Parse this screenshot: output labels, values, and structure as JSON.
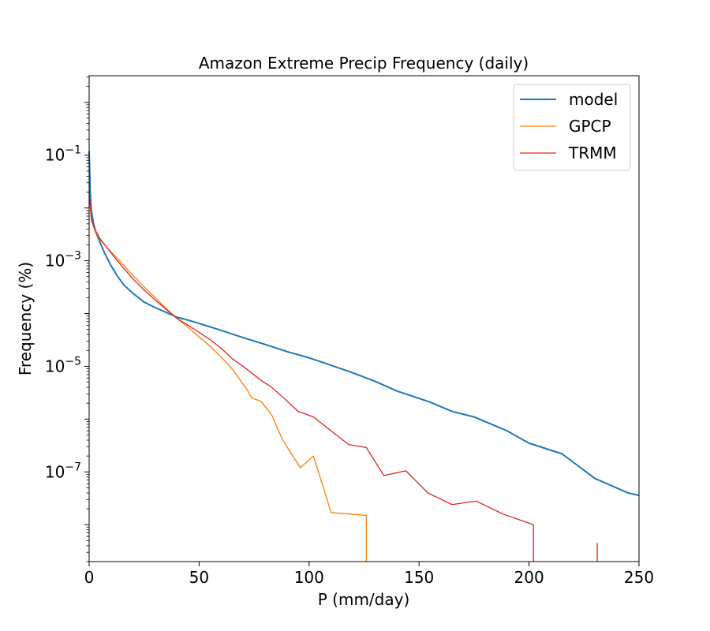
{
  "chart_data": {
    "type": "line",
    "title": "Amazon Extreme Precip Frequency (daily)",
    "xlabel": "P (mm/day)",
    "ylabel": "Frequency (%)",
    "xscale": "linear",
    "yscale": "log",
    "xlim": [
      0,
      250
    ],
    "ylim": [
      2e-09,
      3.2
    ],
    "xticks": [
      {
        "value": 0,
        "label": "0"
      },
      {
        "value": 50,
        "label": "50"
      },
      {
        "value": 100,
        "label": "100"
      },
      {
        "value": 150,
        "label": "150"
      },
      {
        "value": 200,
        "label": "200"
      },
      {
        "value": 250,
        "label": "250"
      }
    ],
    "yticks": [
      {
        "value": 0.1,
        "base": "10",
        "exp": "−1"
      },
      {
        "value": 0.001,
        "base": "10",
        "exp": "−3"
      },
      {
        "value": 1e-05,
        "base": "10",
        "exp": "−5"
      },
      {
        "value": 1e-07,
        "base": "10",
        "exp": "−7"
      }
    ],
    "legend_position": "top-right",
    "series": [
      {
        "name": "model",
        "color": "#1f77b4",
        "segments": [
          [
            [
              0,
              0.12
            ],
            [
              0.5,
              0.02
            ],
            [
              1,
              0.009
            ],
            [
              2,
              0.005
            ],
            [
              3,
              0.0035
            ],
            [
              5,
              0.0022
            ],
            [
              7,
              0.0014
            ],
            [
              10,
              0.0008
            ],
            [
              13,
              0.0005
            ],
            [
              16,
              0.00034
            ],
            [
              20,
              0.00024
            ],
            [
              25,
              0.000165
            ],
            [
              30,
              0.00013
            ],
            [
              35,
              0.000105
            ],
            [
              40,
              8.5e-05
            ],
            [
              45,
              7.5e-05
            ],
            [
              50,
              6.5e-05
            ],
            [
              60,
              4.8e-05
            ],
            [
              70,
              3.5e-05
            ],
            [
              80,
              2.6e-05
            ],
            [
              90,
              1.9e-05
            ],
            [
              100,
              1.45e-05
            ],
            [
              110,
              1.05e-05
            ],
            [
              120,
              7.5e-06
            ],
            [
              130,
              5.2e-06
            ],
            [
              140,
              3.4e-06
            ],
            [
              155,
              2.1e-06
            ],
            [
              165,
              1.4e-06
            ],
            [
              175,
              1.1e-06
            ],
            [
              190,
              6e-07
            ],
            [
              200,
              3.5e-07
            ],
            [
              215,
              2.2e-07
            ],
            [
              230,
              7.5e-08
            ],
            [
              245,
              4e-08
            ],
            [
              250,
              3.6e-08
            ]
          ]
        ]
      },
      {
        "name": "GPCP",
        "color": "#ff7f0e",
        "segments": [
          [
            [
              0,
              0.02
            ],
            [
              1,
              0.006
            ],
            [
              2.5,
              0.0038
            ],
            [
              5,
              0.0025
            ],
            [
              8,
              0.0018
            ],
            [
              12,
              0.0012
            ],
            [
              16,
              0.0008
            ],
            [
              20,
              0.00052
            ],
            [
              25,
              0.00032
            ],
            [
              30,
              0.0002
            ],
            [
              35,
              0.000125
            ],
            [
              40,
              8e-05
            ],
            [
              45,
              5.5e-05
            ],
            [
              50,
              3.6e-05
            ],
            [
              55,
              2.4e-05
            ],
            [
              60,
              1.5e-05
            ],
            [
              65,
              9e-06
            ],
            [
              68,
              6e-06
            ],
            [
              72,
              3.5e-06
            ],
            [
              74,
              2.5e-06
            ],
            [
              78,
              2.2e-06
            ],
            [
              83,
              1.2e-06
            ],
            [
              88,
              4e-07
            ],
            [
              96,
              1.2e-07
            ],
            [
              102,
              2e-07
            ],
            [
              110,
              1.7e-08
            ],
            [
              126,
              1.5e-08
            ],
            [
              126,
              2e-09
            ]
          ]
        ]
      },
      {
        "name": "TRMM",
        "color": "#d62728",
        "segments": [
          [
            [
              0,
              0.02
            ],
            [
              1,
              0.006
            ],
            [
              2.5,
              0.004
            ],
            [
              5,
              0.0026
            ],
            [
              8,
              0.0018
            ],
            [
              12,
              0.0011
            ],
            [
              16,
              0.0007
            ],
            [
              20,
              0.00045
            ],
            [
              25,
              0.00028
            ],
            [
              30,
              0.00018
            ],
            [
              35,
              0.00012
            ],
            [
              40,
              8e-05
            ],
            [
              45,
              6e-05
            ],
            [
              50,
              4.4e-05
            ],
            [
              55,
              3.2e-05
            ],
            [
              60,
              2.2e-05
            ],
            [
              65,
              1.4e-05
            ],
            [
              70,
              1e-05
            ],
            [
              78,
              5.5e-06
            ],
            [
              83,
              4e-06
            ],
            [
              90,
              2.2e-06
            ],
            [
              95,
              1.4e-06
            ],
            [
              102,
              1.1e-06
            ],
            [
              110,
              6e-07
            ],
            [
              118,
              3.3e-07
            ],
            [
              126,
              2.9e-07
            ],
            [
              134,
              8.5e-08
            ],
            [
              144,
              1.05e-07
            ],
            [
              154,
              4e-08
            ],
            [
              165,
              2.4e-08
            ],
            [
              176,
              2.8e-08
            ],
            [
              188,
              1.6e-08
            ],
            [
              202,
              1e-08
            ],
            [
              202,
              2e-09
            ]
          ],
          [
            [
              231,
              2e-09
            ],
            [
              231,
              4.5e-09
            ]
          ]
        ]
      }
    ]
  }
}
